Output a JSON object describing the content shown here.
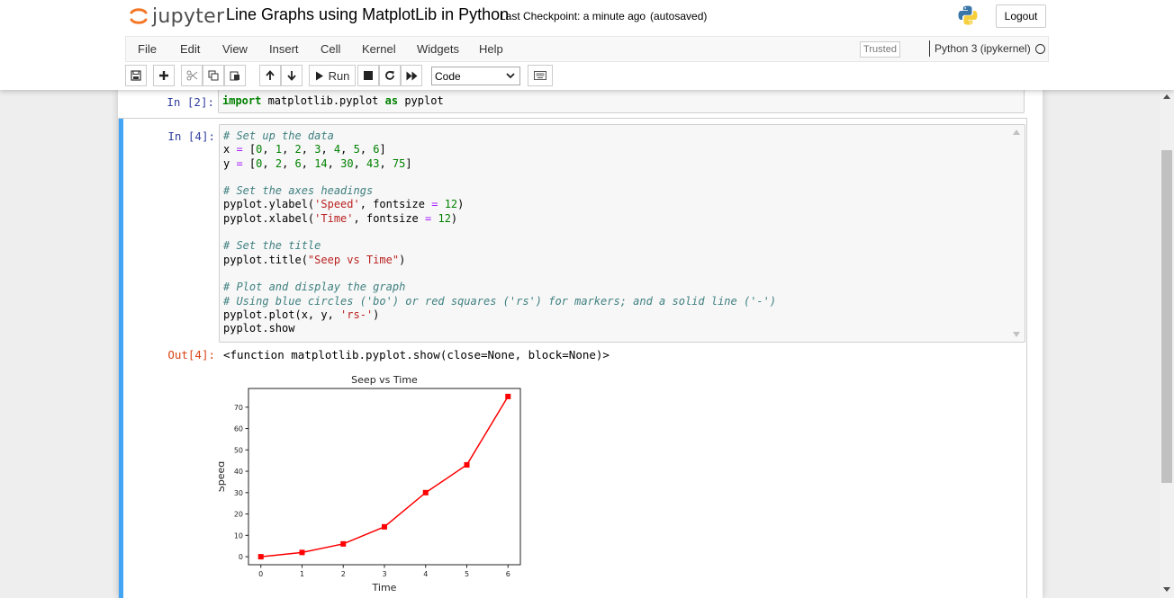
{
  "app": {
    "logo_text": "jupyter",
    "notebook_name": "Line Graphs using MatplotLib in Python",
    "checkpoint": "Last Checkpoint: a minute ago",
    "autosave": "(autosaved)",
    "logout_label": "Logout"
  },
  "menubar": {
    "items": [
      "File",
      "Edit",
      "View",
      "Insert",
      "Cell",
      "Kernel",
      "Widgets",
      "Help"
    ],
    "trusted_label": "Trusted",
    "kernel_name": "Python 3 (ipykernel)"
  },
  "toolbar": {
    "run_label": "Run",
    "cell_type": "Code"
  },
  "cells": [
    {
      "prompt": "In [2]:",
      "lines": [
        "import matplotlib.pyplot as pyplot"
      ]
    },
    {
      "prompt": "In [4]:",
      "lines": [
        "# Set up the data",
        "x = [0, 1, 2, 3, 4, 5, 6]",
        "y = [0, 2, 6, 14, 30, 43, 75]",
        "",
        "# Set the axes headings",
        "pyplot.ylabel('Speed', fontsize = 12)",
        "pyplot.xlabel('Time', fontsize = 12)",
        "",
        "# Set the title",
        "pyplot.title(\"Seep vs Time\")",
        "",
        "# Plot and display the graph",
        "# Using blue circles ('bo') or red squares ('rs') for markers; and a solid line ('-')",
        "pyplot.plot(x, y, 'rs-')",
        "pyplot.show"
      ],
      "out_prompt": "Out[4]:",
      "output_text": "<function matplotlib.pyplot.show(close=None, block=None)>"
    }
  ],
  "chart_data": {
    "type": "line",
    "title": "Seep vs Time",
    "xlabel": "Time",
    "ylabel": "Speed",
    "x": [
      0,
      1,
      2,
      3,
      4,
      5,
      6
    ],
    "series": [
      {
        "values": [
          0,
          2,
          6,
          14,
          30,
          43,
          75
        ],
        "color": "#ff0000",
        "marker": "square"
      }
    ],
    "xticks": [
      "0",
      "1",
      "2",
      "3",
      "4",
      "5",
      "6"
    ],
    "yticks": [
      "0",
      "10",
      "20",
      "30",
      "40",
      "50",
      "60",
      "70"
    ],
    "xlim": [
      -0.3,
      6.3
    ],
    "ylim": [
      -3.75,
      78.75
    ],
    "grid": false
  }
}
